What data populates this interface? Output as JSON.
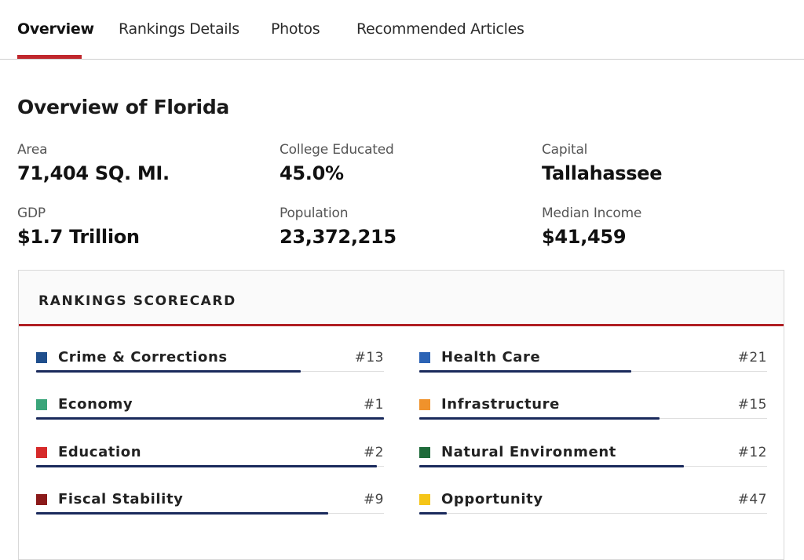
{
  "tabs": [
    {
      "label": "Overview",
      "active": true
    },
    {
      "label": "Rankings Details",
      "active": false
    },
    {
      "label": "Photos",
      "active": false
    },
    {
      "label": "Recommended Articles",
      "active": false
    }
  ],
  "overview": {
    "title": "Overview of Florida",
    "stats": [
      {
        "label": "Area",
        "value": "71,404 SQ. MI."
      },
      {
        "label": "College Educated",
        "value": "45.0%"
      },
      {
        "label": "Capital",
        "value": "Tallahassee"
      },
      {
        "label": "GDP",
        "value": "$1.7 Trillion"
      },
      {
        "label": "Population",
        "value": "23,372,215"
      },
      {
        "label": "Median Income",
        "value": "$41,459"
      }
    ]
  },
  "scorecard": {
    "title": "RANKINGS SCORECARD",
    "bar_color": "#1a2a5c",
    "items": [
      {
        "name": "Crime & Corrections",
        "rank": "#13",
        "color": "#1f4e8c",
        "bar_fraction": 0.76
      },
      {
        "name": "Health Care",
        "rank": "#21",
        "color": "#2b63b5",
        "bar_fraction": 0.61
      },
      {
        "name": "Economy",
        "rank": "#1",
        "color": "#3aa57a",
        "bar_fraction": 1.0
      },
      {
        "name": "Infrastructure",
        "rank": "#15",
        "color": "#f0922b",
        "bar_fraction": 0.69
      },
      {
        "name": "Education",
        "rank": "#2",
        "color": "#d62a2a",
        "bar_fraction": 0.98
      },
      {
        "name": "Natural Environment",
        "rank": "#12",
        "color": "#1e6b3a",
        "bar_fraction": 0.76
      },
      {
        "name": "Fiscal Stability",
        "rank": "#9",
        "color": "#8b1a1a",
        "bar_fraction": 0.84
      },
      {
        "name": "Opportunity",
        "rank": "#47",
        "color": "#f5c518",
        "bar_fraction": 0.08
      }
    ]
  }
}
